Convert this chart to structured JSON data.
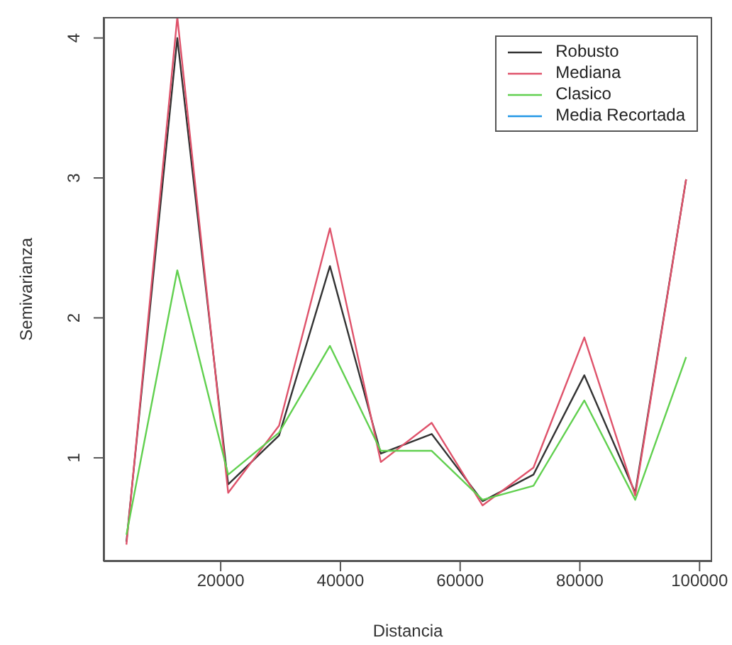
{
  "chart_data": {
    "type": "line",
    "xlabel": "Distancia",
    "ylabel": "Semivarianza",
    "x": [
      4250,
      12750,
      21250,
      29750,
      38250,
      46750,
      55250,
      63750,
      72250,
      80750,
      89250,
      97750
    ],
    "series": [
      {
        "name": "Robusto",
        "color": "#333333",
        "values": [
          0.4,
          4.0,
          0.81,
          1.16,
          2.37,
          1.03,
          1.17,
          0.69,
          0.88,
          1.59,
          0.75,
          2.99
        ]
      },
      {
        "name": "Mediana",
        "color": "#df536b",
        "values": [
          0.38,
          4.15,
          0.75,
          1.23,
          2.64,
          0.97,
          1.25,
          0.66,
          0.93,
          1.86,
          0.73,
          2.99
        ]
      },
      {
        "name": "Clasico",
        "color": "#61d04f",
        "values": [
          0.45,
          2.34,
          0.88,
          1.18,
          1.8,
          1.05,
          1.05,
          0.7,
          0.8,
          1.41,
          0.7,
          1.72
        ]
      },
      {
        "name": "Media Recortada",
        "color": "#2297e6",
        "values": [
          null,
          null,
          null,
          null,
          null,
          null,
          null,
          null,
          null,
          null,
          null,
          null
        ]
      }
    ],
    "xlim": [
      430,
      102100
    ],
    "xticks": [
      20000,
      40000,
      60000,
      80000,
      100000
    ],
    "ylim": [
      0.26,
      4.15
    ],
    "yticks": [
      1,
      2,
      3,
      4
    ],
    "grid": false,
    "legend": "top right",
    "marker": "none",
    "line_style": "solid"
  }
}
